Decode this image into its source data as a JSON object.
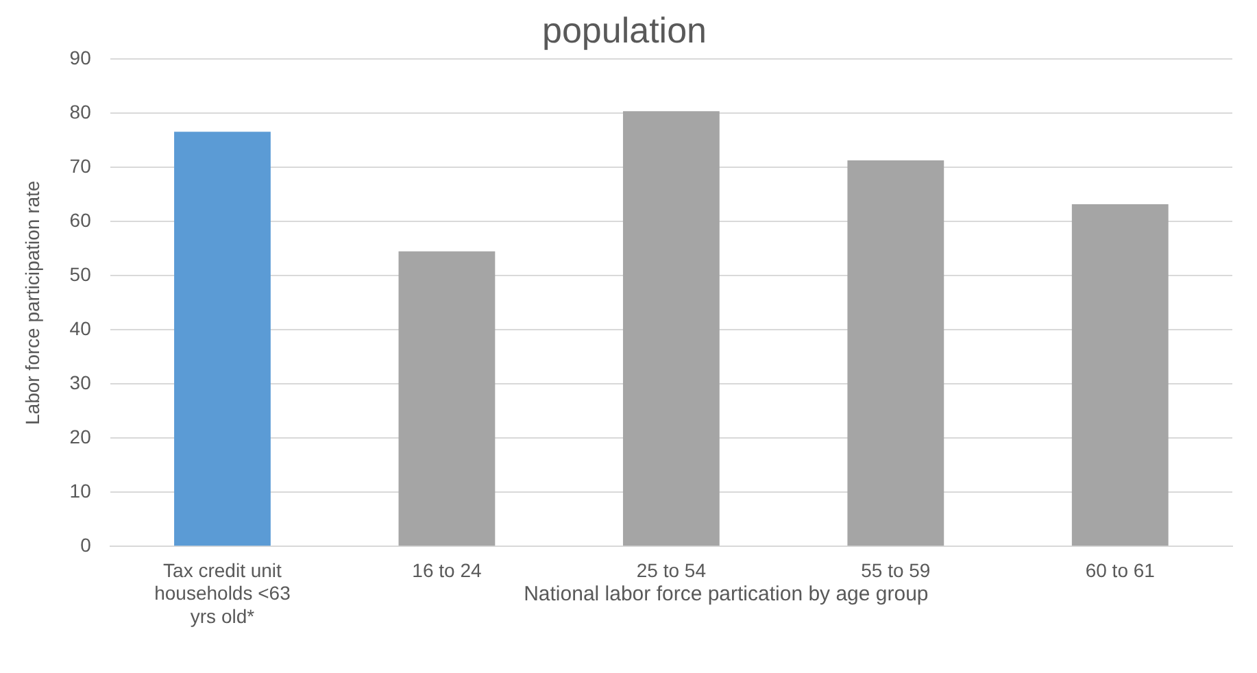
{
  "chart_data": {
    "type": "bar",
    "title": "population",
    "ylabel": "Labor force participation rate",
    "xlabel": "National labor force partication by age group",
    "categories": [
      "Tax credit unit households <63 yrs old*",
      "16 to 24",
      "25 to 54",
      "55 to 59",
      "60 to 61"
    ],
    "values": [
      76.6,
      54.5,
      80.4,
      71.3,
      63.2
    ],
    "colors": [
      "#5b9bd5",
      "#a5a5a5",
      "#a5a5a5",
      "#a5a5a5",
      "#a5a5a5"
    ],
    "ylim": [
      0,
      90
    ],
    "yticks": [
      0,
      10,
      20,
      30,
      40,
      50,
      60,
      70,
      80,
      90
    ],
    "grid": "y",
    "legend": false
  }
}
